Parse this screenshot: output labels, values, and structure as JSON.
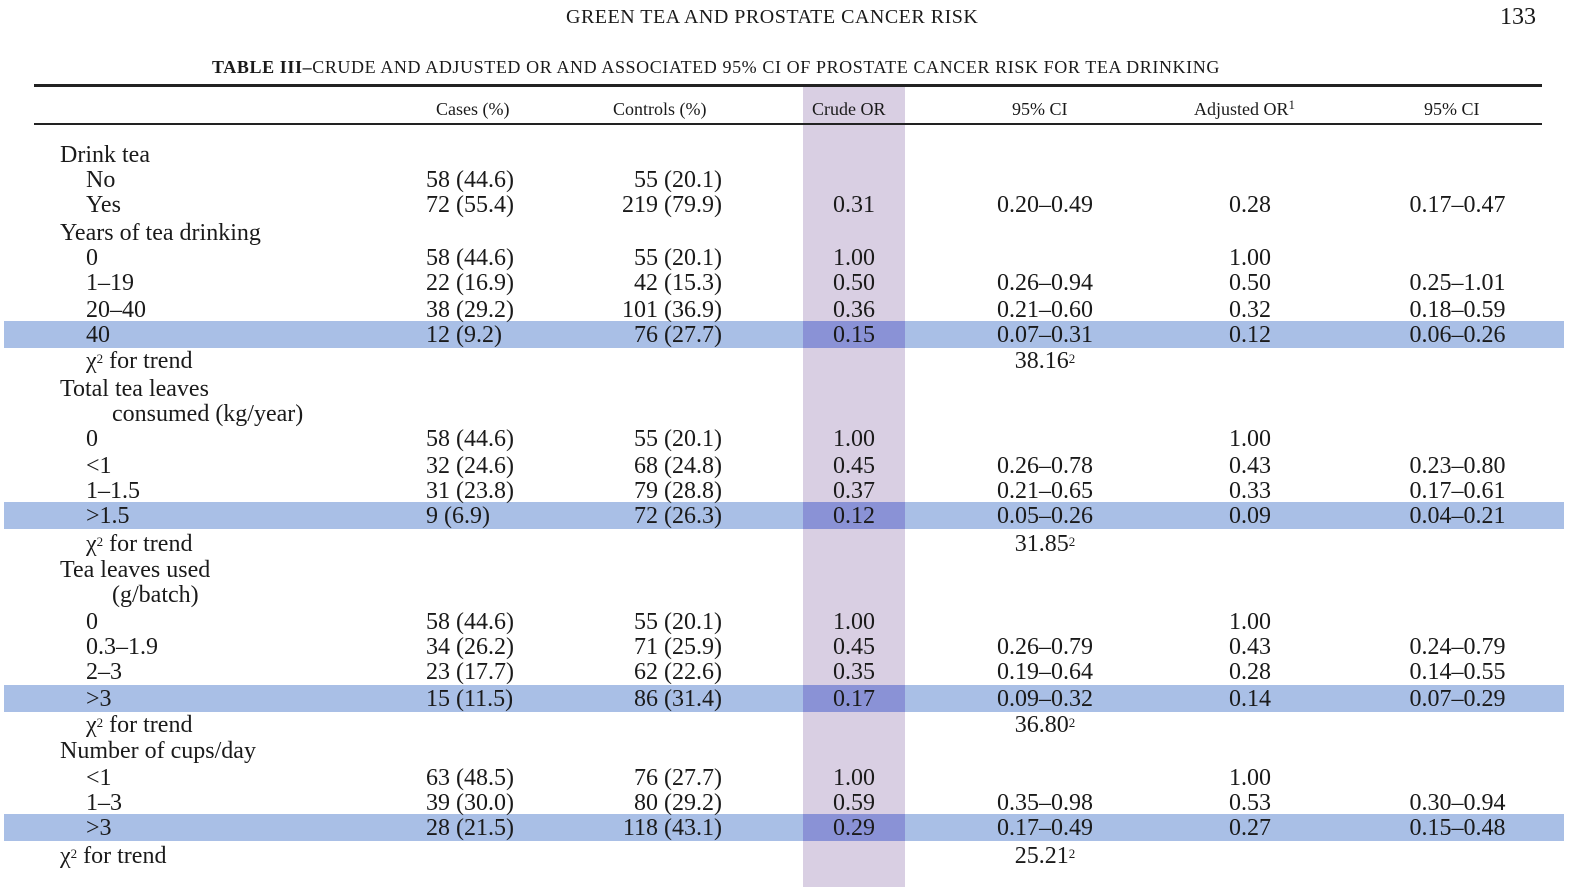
{
  "header": {
    "running_head": "GREEN TEA AND PROSTATE CANCER RISK",
    "page_number": "133"
  },
  "table": {
    "caption_label": "TABLE III",
    "caption_dash": "–",
    "caption_text": "CRUDE AND ADJUSTED OR AND ASSOCIATED 95% CI OF PROSTATE CANCER RISK FOR TEA DRINKING",
    "columns": [
      "Cases (%)",
      "Controls (%)",
      "Crude OR",
      "95% CI",
      "Adjusted OR",
      "95% CI"
    ],
    "adjusted_superscript": "1",
    "highlight_color": "#a9bfe6",
    "column_highlight_color": "#d9cfe3",
    "rows": [
      {
        "label": "Drink tea",
        "indent": 0,
        "cases": "",
        "controls": "",
        "crude": "",
        "ci": "",
        "adj": "",
        "ci2": ""
      },
      {
        "label": "No",
        "indent": 1,
        "cases": "58 (44.6)",
        "controls": "55 (20.1)",
        "crude": "",
        "ci": "",
        "adj": "",
        "ci2": ""
      },
      {
        "label": "Yes",
        "indent": 1,
        "cases": "72 (55.4)",
        "controls": "219 (79.9)",
        "crude": "0.31",
        "ci": "0.20–0.49",
        "adj": "0.28",
        "ci2": "0.17–0.47"
      },
      {
        "label": "Years of tea drinking",
        "indent": 0,
        "cases": "",
        "controls": "",
        "crude": "",
        "ci": "",
        "adj": "",
        "ci2": ""
      },
      {
        "label": "0",
        "indent": 1,
        "cases": "58 (44.6)",
        "controls": "55 (20.1)",
        "crude": "1.00",
        "ci": "",
        "adj": "1.00",
        "ci2": ""
      },
      {
        "label": "1–19",
        "indent": 1,
        "cases": "22 (16.9)",
        "controls": "42 (15.3)",
        "crude": "0.50",
        "ci": "0.26–0.94",
        "adj": "0.50",
        "ci2": "0.25–1.01"
      },
      {
        "label": "20–40",
        "indent": 1,
        "cases": "38 (29.2)",
        "controls": "101 (36.9)",
        "crude": "0.36",
        "ci": "0.21–0.60",
        "adj": "0.32",
        "ci2": "0.18–0.59"
      },
      {
        "label": "40",
        "indent": 1,
        "cases": "12 (9.2)",
        "controls": "76 (27.7)",
        "crude": "0.15",
        "ci": "0.07–0.31",
        "adj": "0.12",
        "ci2": "0.06–0.26",
        "highlight": true
      },
      {
        "label": "χ",
        "sup": "2",
        "label_rest": " for trend",
        "indent": 1,
        "cases": "",
        "controls": "",
        "crude": "",
        "ci": "38.16",
        "ci_sup": "2",
        "adj": "",
        "ci2": ""
      },
      {
        "label": "Total tea leaves",
        "indent": 0,
        "cases": "",
        "controls": "",
        "crude": "",
        "ci": "",
        "adj": "",
        "ci2": ""
      },
      {
        "label": "consumed (kg/year)",
        "indent": 2,
        "cases": "",
        "controls": "",
        "crude": "",
        "ci": "",
        "adj": "",
        "ci2": ""
      },
      {
        "label": "0",
        "indent": 1,
        "cases": "58 (44.6)",
        "controls": "55 (20.1)",
        "crude": "1.00",
        "ci": "",
        "adj": "1.00",
        "ci2": ""
      },
      {
        "label": "<1",
        "indent": 1,
        "cases": "32 (24.6)",
        "controls": "68 (24.8)",
        "crude": "0.45",
        "ci": "0.26–0.78",
        "adj": "0.43",
        "ci2": "0.23–0.80"
      },
      {
        "label": "1–1.5",
        "indent": 1,
        "cases": "31 (23.8)",
        "controls": "79 (28.8)",
        "crude": "0.37",
        "ci": "0.21–0.65",
        "adj": "0.33",
        "ci2": "0.17–0.61"
      },
      {
        "label": ">1.5",
        "indent": 1,
        "cases": "9 (6.9)",
        "controls": "72 (26.3)",
        "crude": "0.12",
        "ci": "0.05–0.26",
        "adj": "0.09",
        "ci2": "0.04–0.21",
        "highlight": true
      },
      {
        "label": "χ",
        "sup": "2",
        "label_rest": " for trend",
        "indent": 1,
        "cases": "",
        "controls": "",
        "crude": "",
        "ci": "31.85",
        "ci_sup": "2",
        "adj": "",
        "ci2": ""
      },
      {
        "label": "Tea leaves used",
        "indent": 0,
        "cases": "",
        "controls": "",
        "crude": "",
        "ci": "",
        "adj": "",
        "ci2": ""
      },
      {
        "label": "(g/batch)",
        "indent": 2,
        "cases": "",
        "controls": "",
        "crude": "",
        "ci": "",
        "adj": "",
        "ci2": ""
      },
      {
        "label": "0",
        "indent": 1,
        "cases": "58 (44.6)",
        "controls": "55 (20.1)",
        "crude": "1.00",
        "ci": "",
        "adj": "1.00",
        "ci2": ""
      },
      {
        "label": "0.3–1.9",
        "indent": 1,
        "cases": "34 (26.2)",
        "controls": "71 (25.9)",
        "crude": "0.45",
        "ci": "0.26–0.79",
        "adj": "0.43",
        "ci2": "0.24–0.79"
      },
      {
        "label": "2–3",
        "indent": 1,
        "cases": "23 (17.7)",
        "controls": "62 (22.6)",
        "crude": "0.35",
        "ci": "0.19–0.64",
        "adj": "0.28",
        "ci2": "0.14–0.55"
      },
      {
        "label": ">3",
        "indent": 1,
        "cases": "15 (11.5)",
        "controls": "86 (31.4)",
        "crude": "0.17",
        "ci": "0.09–0.32",
        "adj": "0.14",
        "ci2": "0.07–0.29",
        "highlight": true
      },
      {
        "label": "χ",
        "sup": "2",
        "label_rest": " for trend",
        "indent": 1,
        "cases": "",
        "controls": "",
        "crude": "",
        "ci": "36.80",
        "ci_sup": "2",
        "adj": "",
        "ci2": ""
      },
      {
        "label": "Number of cups/day",
        "indent": 0,
        "cases": "",
        "controls": "",
        "crude": "",
        "ci": "",
        "adj": "",
        "ci2": ""
      },
      {
        "label": "<1",
        "indent": 1,
        "cases": "63 (48.5)",
        "controls": "76 (27.7)",
        "crude": "1.00",
        "ci": "",
        "adj": "1.00",
        "ci2": ""
      },
      {
        "label": "1–3",
        "indent": 1,
        "cases": "39 (30.0)",
        "controls": "80 (29.2)",
        "crude": "0.59",
        "ci": "0.35–0.98",
        "adj": "0.53",
        "ci2": "0.30–0.94"
      },
      {
        "label": ">3",
        "indent": 1,
        "cases": "28 (21.5)",
        "controls": "118 (43.1)",
        "crude": "0.29",
        "ci": "0.17–0.49",
        "adj": "0.27",
        "ci2": "0.15–0.48",
        "highlight": true
      },
      {
        "label": "χ",
        "sup": "2",
        "label_rest": " for trend",
        "indent": 0,
        "cases": "",
        "controls": "",
        "crude": "",
        "ci": "25.21",
        "ci_sup": "2",
        "adj": "",
        "ci2": ""
      }
    ]
  }
}
